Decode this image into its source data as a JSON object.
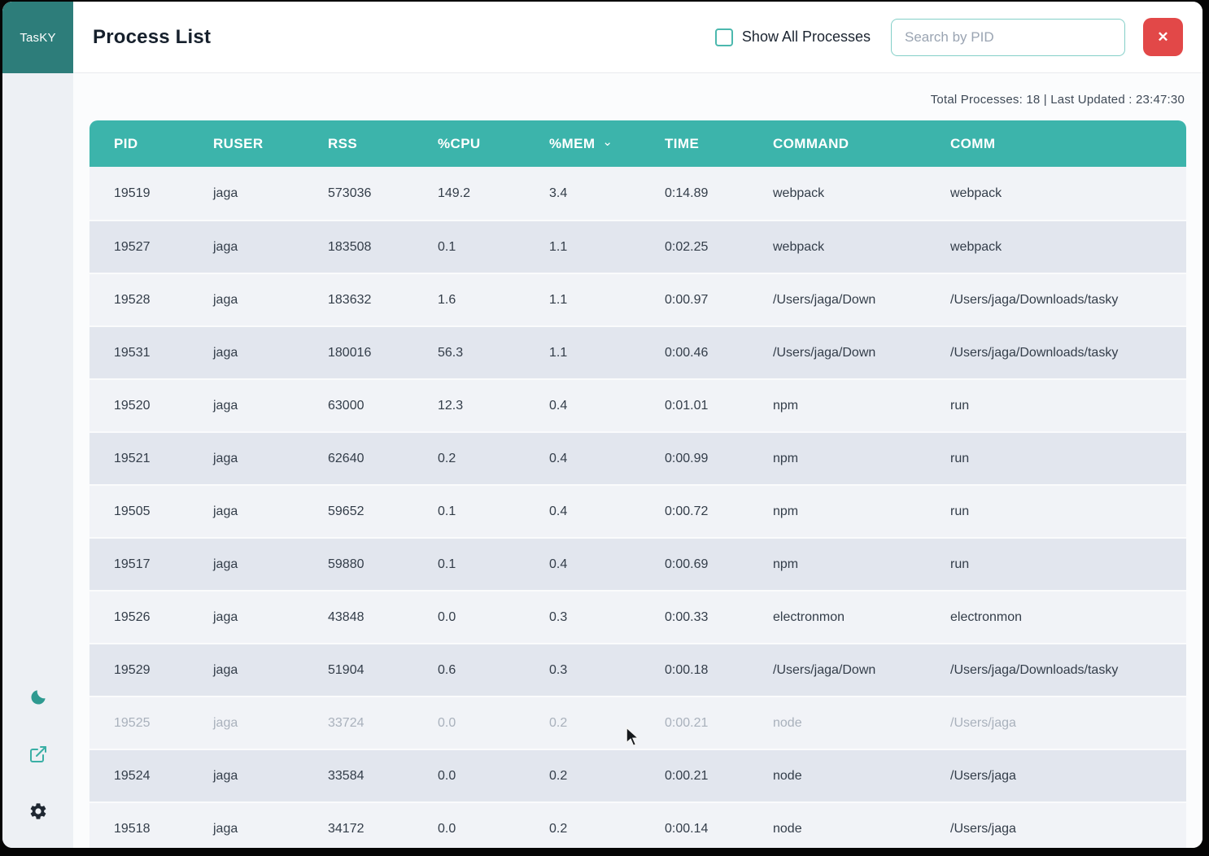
{
  "app": {
    "name": "TasKY"
  },
  "sidebar": {
    "logo": "TasKY",
    "icons": [
      {
        "name": "moon-icon",
        "meaning": "dark-mode-toggle"
      },
      {
        "name": "external-link-icon",
        "meaning": "open-external"
      },
      {
        "name": "gear-icon",
        "meaning": "settings"
      }
    ]
  },
  "header": {
    "title": "Process List",
    "show_all_label": "Show All Processes",
    "show_all_checked": false,
    "search_placeholder": "Search by PID",
    "search_value": "",
    "close_label": "✕"
  },
  "meta": {
    "summary": "Total Processes: 18 | Last Updated : 23:47:30",
    "total_processes": "18",
    "last_updated": "23:47:30"
  },
  "table": {
    "columns": [
      {
        "label": "PID",
        "key": "pid",
        "sorted": false
      },
      {
        "label": "RUSER",
        "key": "ruser",
        "sorted": false
      },
      {
        "label": "RSS",
        "key": "rss",
        "sorted": false
      },
      {
        "label": "%CPU",
        "key": "cpu",
        "sorted": false
      },
      {
        "label": "%MEM",
        "key": "mem",
        "sorted": true
      },
      {
        "label": "TIME",
        "key": "time",
        "sorted": false
      },
      {
        "label": "COMMAND",
        "key": "command",
        "sorted": false
      },
      {
        "label": "COMM",
        "key": "comm",
        "sorted": false
      }
    ],
    "sort_indicator": "⌄",
    "rows": [
      {
        "pid": "19519",
        "ruser": "jaga",
        "rss": "573036",
        "cpu": "149.2",
        "mem": "3.4",
        "time": "0:14.89",
        "command": "webpack",
        "comm": "webpack",
        "faded": false
      },
      {
        "pid": "19527",
        "ruser": "jaga",
        "rss": "183508",
        "cpu": "0.1",
        "mem": "1.1",
        "time": "0:02.25",
        "command": "webpack",
        "comm": "webpack",
        "faded": false
      },
      {
        "pid": "19528",
        "ruser": "jaga",
        "rss": "183632",
        "cpu": "1.6",
        "mem": "1.1",
        "time": "0:00.97",
        "command": "/Users/jaga/Down",
        "comm": "/Users/jaga/Downloads/tasky",
        "faded": false
      },
      {
        "pid": "19531",
        "ruser": "jaga",
        "rss": "180016",
        "cpu": "56.3",
        "mem": "1.1",
        "time": "0:00.46",
        "command": "/Users/jaga/Down",
        "comm": "/Users/jaga/Downloads/tasky",
        "faded": false
      },
      {
        "pid": "19520",
        "ruser": "jaga",
        "rss": "63000",
        "cpu": "12.3",
        "mem": "0.4",
        "time": "0:01.01",
        "command": "npm",
        "comm": "run",
        "faded": false
      },
      {
        "pid": "19521",
        "ruser": "jaga",
        "rss": "62640",
        "cpu": "0.2",
        "mem": "0.4",
        "time": "0:00.99",
        "command": "npm",
        "comm": "run",
        "faded": false
      },
      {
        "pid": "19505",
        "ruser": "jaga",
        "rss": "59652",
        "cpu": "0.1",
        "mem": "0.4",
        "time": "0:00.72",
        "command": "npm",
        "comm": "run",
        "faded": false
      },
      {
        "pid": "19517",
        "ruser": "jaga",
        "rss": "59880",
        "cpu": "0.1",
        "mem": "0.4",
        "time": "0:00.69",
        "command": "npm",
        "comm": "run",
        "faded": false
      },
      {
        "pid": "19526",
        "ruser": "jaga",
        "rss": "43848",
        "cpu": "0.0",
        "mem": "0.3",
        "time": "0:00.33",
        "command": "electronmon",
        "comm": "electronmon",
        "faded": false
      },
      {
        "pid": "19529",
        "ruser": "jaga",
        "rss": "51904",
        "cpu": "0.6",
        "mem": "0.3",
        "time": "0:00.18",
        "command": "/Users/jaga/Down",
        "comm": "/Users/jaga/Downloads/tasky",
        "faded": false
      },
      {
        "pid": "19525",
        "ruser": "jaga",
        "rss": "33724",
        "cpu": "0.0",
        "mem": "0.2",
        "time": "0:00.21",
        "command": "node",
        "comm": "/Users/jaga",
        "faded": true
      },
      {
        "pid": "19524",
        "ruser": "jaga",
        "rss": "33584",
        "cpu": "0.0",
        "mem": "0.2",
        "time": "0:00.21",
        "command": "node",
        "comm": "/Users/jaga",
        "faded": false
      },
      {
        "pid": "19518",
        "ruser": "jaga",
        "rss": "34172",
        "cpu": "0.0",
        "mem": "0.2",
        "time": "0:00.14",
        "command": "node",
        "comm": "/Users/jaga",
        "faded": false
      }
    ]
  },
  "colors": {
    "accent_teal": "#3cb4ab",
    "logo_teal": "#2d7d7a",
    "close_red": "#e24848",
    "row_light": "#f1f3f7",
    "row_dark": "#e2e6ee",
    "faded_text": "#a9b1bc"
  }
}
